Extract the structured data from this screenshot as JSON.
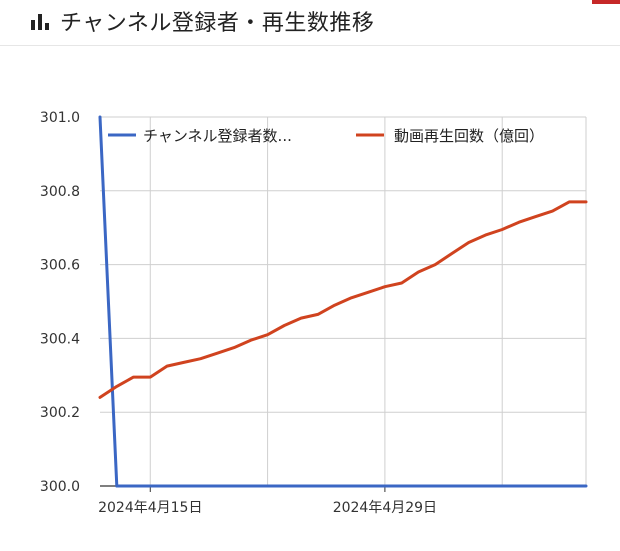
{
  "header": {
    "title": "チャンネル登録者・再生数推移",
    "icon": "bar-chart-icon"
  },
  "chart_data": {
    "type": "line",
    "title": "",
    "xlabel": "",
    "ylabel": "",
    "ylim": [
      300.0,
      301.0
    ],
    "yticks": [
      "301.0",
      "300.8",
      "300.6",
      "300.4",
      "300.2",
      "300.0"
    ],
    "ytick_values": [
      301.0,
      300.8,
      300.6,
      300.4,
      300.2,
      300.0
    ],
    "xticks": [
      "2024年4月15日",
      "2024年4月29日"
    ],
    "grid": true,
    "legend_position": "top",
    "series": [
      {
        "name": "チャンネル登録者数...",
        "color": "#3b67c4",
        "points": [
          [
            0,
            301.0
          ],
          [
            1,
            300.0
          ],
          [
            29,
            300.0
          ]
        ]
      },
      {
        "name": "動画再生回数（億回）",
        "color": "#d0431f",
        "points": [
          [
            0,
            300.24
          ],
          [
            1,
            300.27
          ],
          [
            2,
            300.295
          ],
          [
            3,
            300.295
          ],
          [
            4,
            300.325
          ],
          [
            5,
            300.335
          ],
          [
            6,
            300.345
          ],
          [
            7,
            300.36
          ],
          [
            8,
            300.375
          ],
          [
            9,
            300.395
          ],
          [
            10,
            300.41
          ],
          [
            11,
            300.435
          ],
          [
            12,
            300.455
          ],
          [
            13,
            300.465
          ],
          [
            14,
            300.49
          ],
          [
            15,
            300.51
          ],
          [
            16,
            300.525
          ],
          [
            17,
            300.54
          ],
          [
            18,
            300.55
          ],
          [
            19,
            300.58
          ],
          [
            20,
            300.6
          ],
          [
            21,
            300.63
          ],
          [
            22,
            300.66
          ],
          [
            23,
            300.68
          ],
          [
            24,
            300.695
          ],
          [
            25,
            300.715
          ],
          [
            26,
            300.73
          ],
          [
            27,
            300.745
          ],
          [
            28,
            300.77
          ],
          [
            29,
            300.77
          ]
        ]
      }
    ]
  }
}
